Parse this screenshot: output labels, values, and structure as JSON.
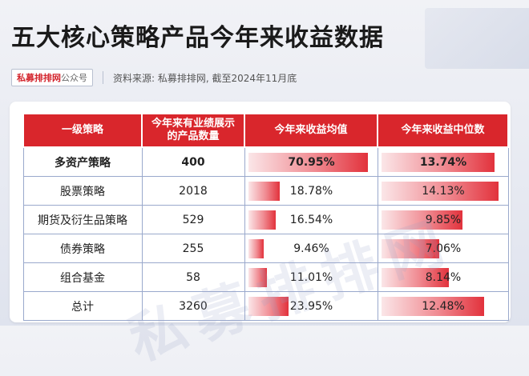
{
  "title": "五大核心策略产品今年来收益数据",
  "badge": {
    "brand": "私募排排网",
    "suffix": "公众号"
  },
  "source": "资料来源: 私募排排网, 截至2024年11月底",
  "watermark": "私募排排网",
  "colors": {
    "header": "#d9262c",
    "border": "#9aa9cc",
    "bar_end": "#e2323c"
  },
  "chart_data": {
    "type": "table",
    "columns": [
      "一级策略",
      "今年来有业绩展示的产品数量",
      "今年来收益均值",
      "今年来收益中位数"
    ],
    "header_lines": [
      [
        "一级策略"
      ],
      [
        "今年来有业绩展示",
        "的产品数量"
      ],
      [
        "今年来收益均值"
      ],
      [
        "今年来收益中位数"
      ]
    ],
    "rows": [
      {
        "strategy": "多资产策略",
        "count": "400",
        "mean": 70.95,
        "mean_label": "70.95%",
        "median": 13.74,
        "median_label": "13.74%"
      },
      {
        "strategy": "股票策略",
        "count": "2018",
        "mean": 18.78,
        "mean_label": "18.78%",
        "median": 14.13,
        "median_label": "14.13%"
      },
      {
        "strategy": "期货及衍生品策略",
        "count": "529",
        "mean": 16.54,
        "mean_label": "16.54%",
        "median": 9.85,
        "median_label": "9.85%"
      },
      {
        "strategy": "债券策略",
        "count": "255",
        "mean": 9.46,
        "mean_label": "9.46%",
        "median": 7.06,
        "median_label": "7.06%"
      },
      {
        "strategy": "组合基金",
        "count": "58",
        "mean": 11.01,
        "mean_label": "11.01%",
        "median": 8.14,
        "median_label": "8.14%"
      },
      {
        "strategy": "总计",
        "count": "3260",
        "mean": 23.95,
        "mean_label": "23.95%",
        "median": 12.48,
        "median_label": "12.48%"
      }
    ]
  }
}
